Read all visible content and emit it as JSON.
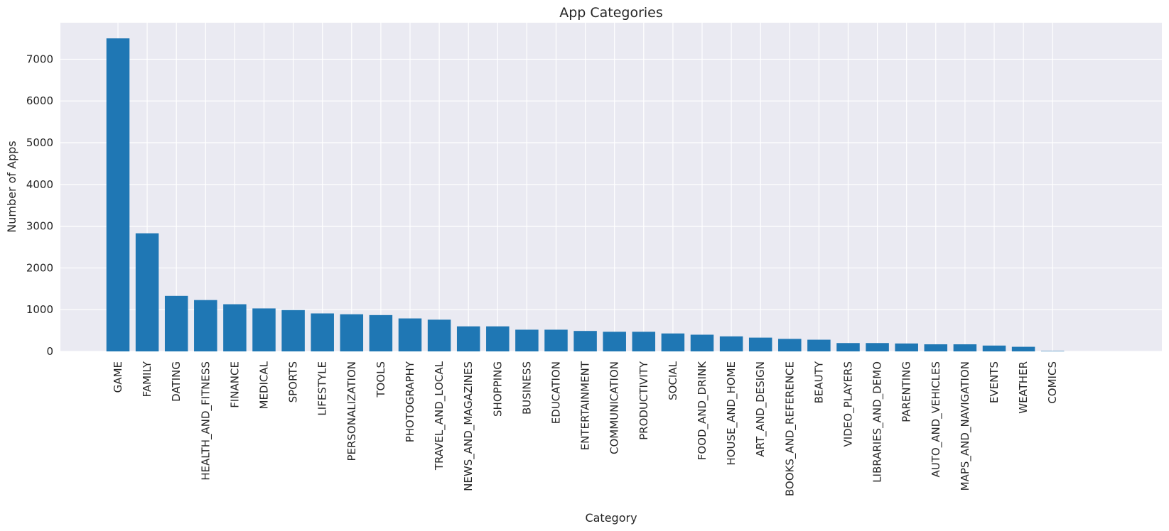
{
  "chart_data": {
    "type": "bar",
    "title": "App Categories",
    "xlabel": "Category",
    "ylabel": "Number of Apps",
    "categories": [
      "GAME",
      "FAMILY",
      "DATING",
      "HEALTH_AND_FITNESS",
      "FINANCE",
      "MEDICAL",
      "SPORTS",
      "LIFESTYLE",
      "PERSONALIZATION",
      "TOOLS",
      "PHOTOGRAPHY",
      "TRAVEL_AND_LOCAL",
      "NEWS_AND_MAGAZINES",
      "SHOPPING",
      "BUSINESS",
      "EDUCATION",
      "ENTERTAINMENT",
      "COMMUNICATION",
      "PRODUCTIVITY",
      "SOCIAL",
      "FOOD_AND_DRINK",
      "HOUSE_AND_HOME",
      "ART_AND_DESIGN",
      "BOOKS_AND_REFERENCE",
      "BEAUTY",
      "VIDEO_PLAYERS",
      "LIBRARIES_AND_DEMO",
      "PARENTING",
      "AUTO_AND_VEHICLES",
      "MAPS_AND_NAVIGATION",
      "EVENTS",
      "WEATHER",
      "COMICS"
    ],
    "values": [
      7500,
      2830,
      1330,
      1230,
      1130,
      1030,
      990,
      910,
      890,
      870,
      790,
      760,
      600,
      600,
      520,
      520,
      490,
      470,
      470,
      430,
      400,
      360,
      330,
      300,
      280,
      200,
      200,
      190,
      170,
      170,
      140,
      110,
      10
    ],
    "yticks": [
      0,
      1000,
      2000,
      3000,
      4000,
      5000,
      6000,
      7000
    ],
    "ylim": [
      0,
      7875
    ],
    "grid": true,
    "colors": {
      "bar": "#1f77b4",
      "plot_background": "#eaeaf2",
      "grid": "#ffffff"
    }
  }
}
